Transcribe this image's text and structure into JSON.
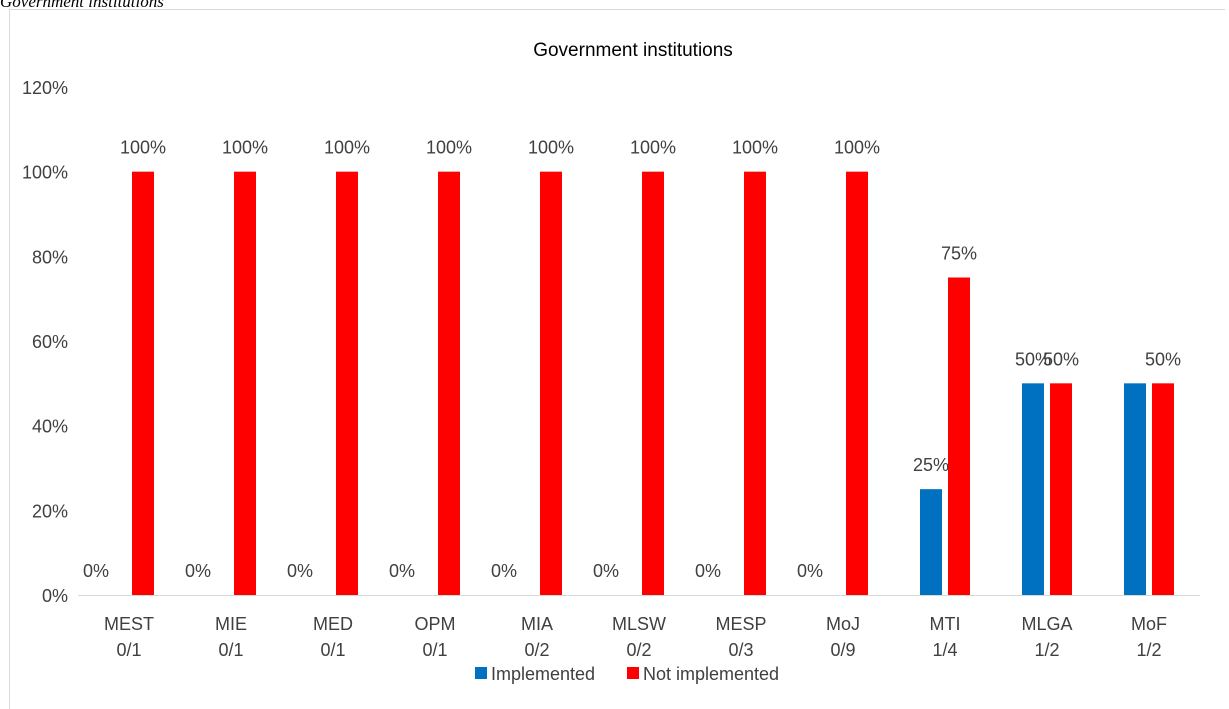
{
  "caption": "Government institutions",
  "chart_data": {
    "type": "bar",
    "title": "Government institutions",
    "categories": [
      [
        "MEST",
        "0/1"
      ],
      [
        "MIE",
        "0/1"
      ],
      [
        "MED",
        "0/1"
      ],
      [
        "OPM",
        "0/1"
      ],
      [
        "MIA",
        "0/2"
      ],
      [
        "MLSW",
        "0/2"
      ],
      [
        "MESP",
        "0/3"
      ],
      [
        "MoJ",
        "0/9"
      ],
      [
        "MTI",
        "1/4"
      ],
      [
        "MLGA",
        "1/2"
      ],
      [
        "MoF",
        "1/2"
      ]
    ],
    "series": [
      {
        "name": "Implemented",
        "color": "#0070c0",
        "values": [
          0,
          0,
          0,
          0,
          0,
          0,
          0,
          0,
          25,
          50,
          50
        ]
      },
      {
        "name": "Not implemented",
        "color": "#ff0000",
        "values": [
          100,
          100,
          100,
          100,
          100,
          100,
          100,
          100,
          75,
          50,
          50
        ]
      }
    ],
    "data_labels": [
      [
        "0%",
        "0%",
        "0%",
        "0%",
        "0%",
        "0%",
        "0%",
        "0%",
        "25%",
        "50%",
        ""
      ],
      [
        "100%",
        "100%",
        "100%",
        "100%",
        "100%",
        "100%",
        "100%",
        "100%",
        "75%",
        "50%",
        "50%"
      ]
    ],
    "ylim": [
      0,
      120
    ],
    "yticks": [
      0,
      20,
      40,
      60,
      80,
      100,
      120
    ],
    "ytick_labels": [
      "0%",
      "20%",
      "40%",
      "60%",
      "80%",
      "100%",
      "120%"
    ],
    "xlabel": "",
    "ylabel": "",
    "legend": "bottom",
    "grid": false
  }
}
